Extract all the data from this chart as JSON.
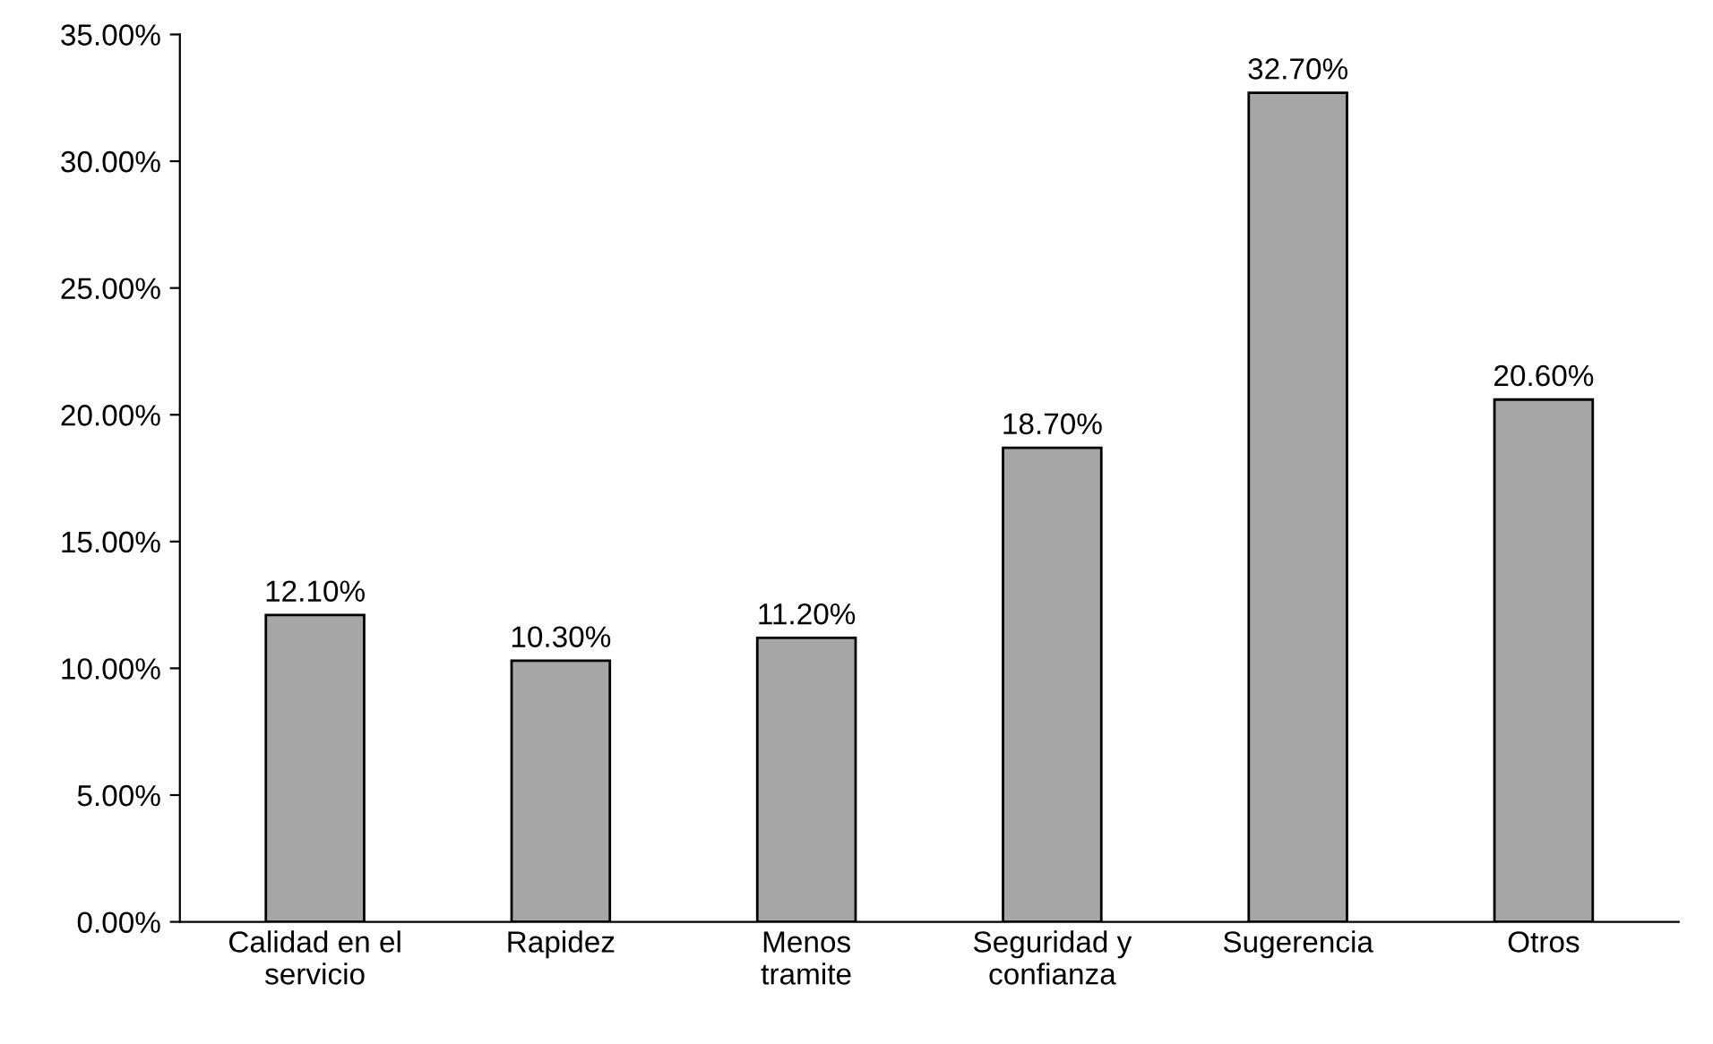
{
  "chart_data": {
    "type": "bar",
    "categories": [
      "Calidad en el\nservicio",
      "Rapidez",
      "Menos\ntramite",
      "Seguridad y\nconfianza",
      "Sugerencia",
      "Otros"
    ],
    "values": [
      12.1,
      10.3,
      11.2,
      18.7,
      32.7,
      20.6
    ],
    "value_labels": [
      "12.10%",
      "10.30%",
      "11.20%",
      "18.70%",
      "32.70%",
      "20.60%"
    ],
    "color": "#a6a6a6",
    "ylim": [
      0,
      35
    ],
    "yticks": [
      {
        "value": 0,
        "label": "0.00%"
      },
      {
        "value": 5,
        "label": "5.00%"
      },
      {
        "value": 10,
        "label": "10.00%"
      },
      {
        "value": 15,
        "label": "15.00%"
      },
      {
        "value": 20,
        "label": "20.00%"
      },
      {
        "value": 25,
        "label": "25.00%"
      },
      {
        "value": 30,
        "label": "30.00%"
      },
      {
        "value": 35,
        "label": "35.00%"
      }
    ],
    "grid": false,
    "legend": false
  }
}
